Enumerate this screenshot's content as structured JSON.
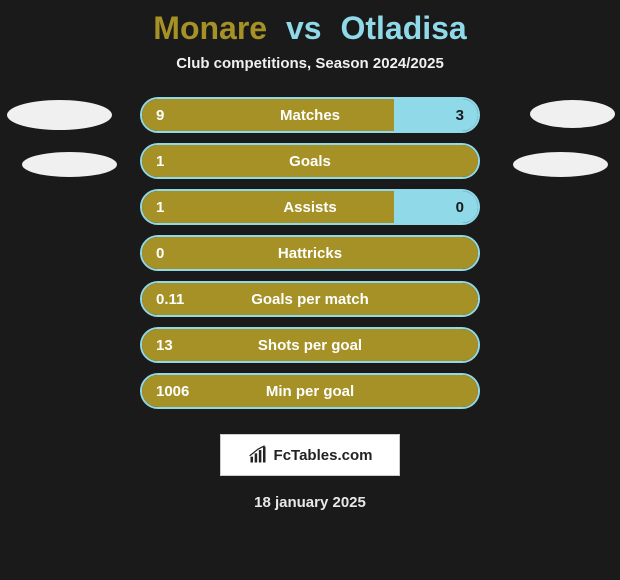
{
  "title": {
    "player1": "Monare",
    "vs": "vs",
    "player2": "Otladisa",
    "color_p1": "#a59126",
    "color_vs": "#8fd9e8",
    "color_p2": "#8fd9e8"
  },
  "subtitle": "Club competitions, Season 2024/2025",
  "colors": {
    "background": "#1a1a1a",
    "bar_left": "#a59126",
    "bar_right": "#8fd9e8",
    "border": "#8fd9e8",
    "ellipse": "#f0f0f0",
    "text_light": "#ffffff",
    "text_dark": "#1a1a1a"
  },
  "bars": [
    {
      "label": "Matches",
      "left_val": "9",
      "right_val": "3",
      "left_pct": 75,
      "right_pct": 25,
      "show_right": true
    },
    {
      "label": "Goals",
      "left_val": "1",
      "right_val": "",
      "left_pct": 100,
      "right_pct": 0,
      "show_right": false
    },
    {
      "label": "Assists",
      "left_val": "1",
      "right_val": "0",
      "left_pct": 75,
      "right_pct": 25,
      "show_right": true
    },
    {
      "label": "Hattricks",
      "left_val": "0",
      "right_val": "",
      "left_pct": 100,
      "right_pct": 0,
      "show_right": false
    },
    {
      "label": "Goals per match",
      "left_val": "0.11",
      "right_val": "",
      "left_pct": 100,
      "right_pct": 0,
      "show_right": false
    },
    {
      "label": "Shots per goal",
      "left_val": "13",
      "right_val": "",
      "left_pct": 100,
      "right_pct": 0,
      "show_right": false
    },
    {
      "label": "Min per goal",
      "left_val": "1006",
      "right_val": "",
      "left_pct": 100,
      "right_pct": 0,
      "show_right": false
    }
  ],
  "logo": {
    "text": "FcTables.com"
  },
  "date": "18 january 2025",
  "ellipses": [
    {
      "cls": "e1"
    },
    {
      "cls": "e2"
    },
    {
      "cls": "e3"
    },
    {
      "cls": "e4"
    }
  ]
}
